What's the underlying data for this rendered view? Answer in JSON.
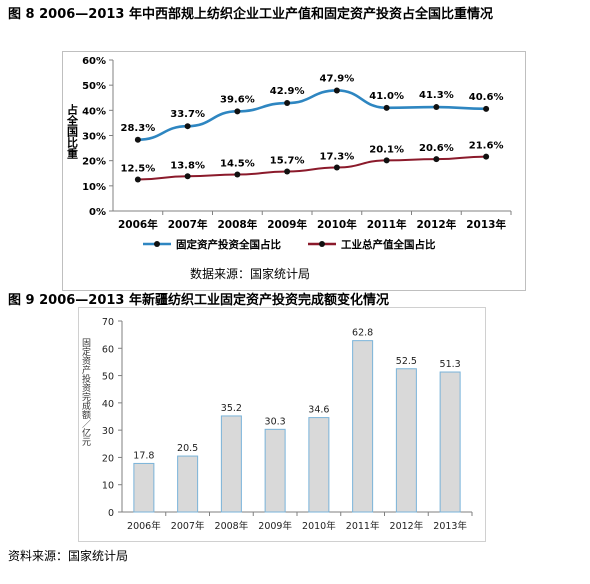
{
  "fig8": {
    "title": "图 8 2006—2013 年中西部规上纺织企业工业产值和固定资产投资占全国比重情况",
    "source": "数据来源：国家统计局"
  },
  "fig9": {
    "title": "图 9 2006—2013 年新疆纺织工业固定资产投资完成额变化情况",
    "source": "资料来源：国家统计局"
  },
  "colors": {
    "investment_line": "#2e86c1",
    "output_line": "#8b1a2b",
    "bar_fill": "#d9d9d9",
    "bar_stroke": "#7ab3d9"
  },
  "chart_data": [
    {
      "type": "line",
      "x": [
        "2006年",
        "2007年",
        "2008年",
        "2009年",
        "2010年",
        "2011年",
        "2012年",
        "2013年"
      ],
      "ylabel": "占全国比重",
      "ylim": [
        0,
        60
      ],
      "yticks": [
        "0%",
        "10%",
        "20%",
        "30%",
        "40%",
        "50%",
        "60%"
      ],
      "legend_position": "bottom",
      "series": [
        {
          "name": "固定资产投资全国占比",
          "values": [
            28.3,
            33.7,
            39.6,
            42.9,
            47.9,
            41.0,
            41.3,
            40.6
          ],
          "labels": [
            "28.3%",
            "33.7%",
            "39.6%",
            "42.9%",
            "47.9%",
            "41.0%",
            "41.3%",
            "40.6%"
          ]
        },
        {
          "name": "工业总产值全国占比",
          "values": [
            12.5,
            13.8,
            14.5,
            15.7,
            17.3,
            20.1,
            20.6,
            21.6
          ],
          "labels": [
            "12.5%",
            "13.8%",
            "14.5%",
            "15.7%",
            "17.3%",
            "20.1%",
            "20.6%",
            "21.6%"
          ]
        }
      ]
    },
    {
      "type": "bar",
      "categories": [
        "2006年",
        "2007年",
        "2008年",
        "2009年",
        "2010年",
        "2011年",
        "2012年",
        "2013年"
      ],
      "values": [
        17.8,
        20.5,
        35.2,
        30.3,
        34.6,
        62.8,
        52.5,
        51.3
      ],
      "labels": [
        "17.8",
        "20.5",
        "35.2",
        "30.3",
        "34.6",
        "62.8",
        "52.5",
        "51.3"
      ],
      "ylabel": "固定资产投资完成额／亿元",
      "ylim": [
        0,
        70
      ],
      "yticks": [
        "0",
        "10",
        "20",
        "30",
        "40",
        "50",
        "60",
        "70"
      ],
      "grid": false
    }
  ]
}
